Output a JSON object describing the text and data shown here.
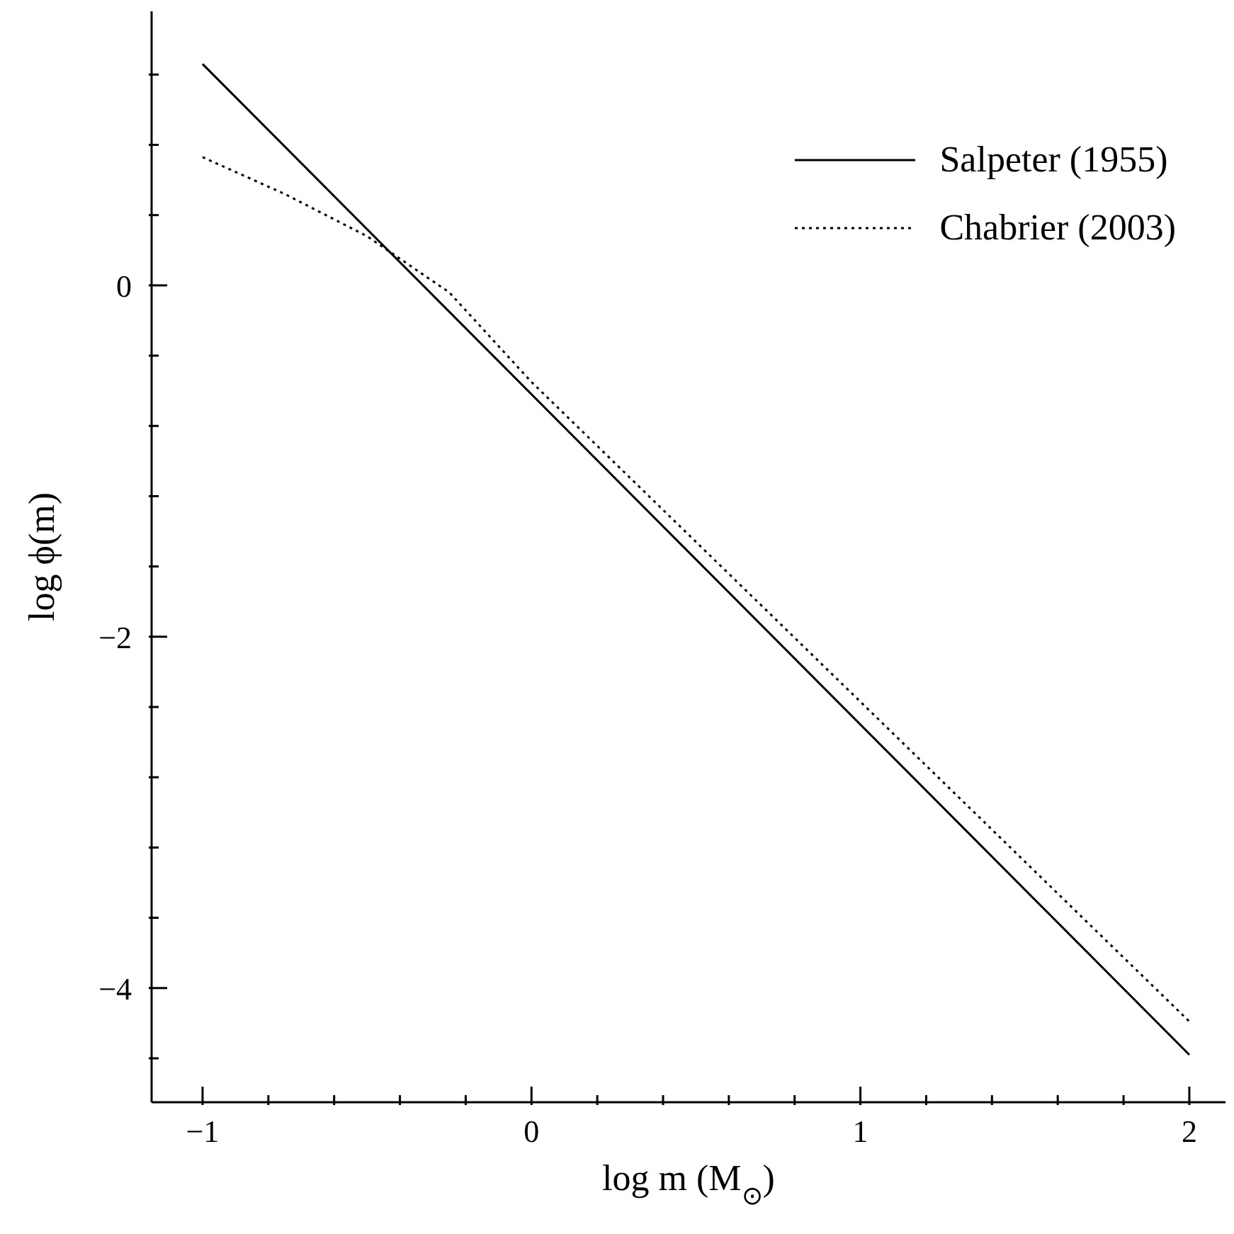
{
  "chart_data": {
    "type": "line",
    "xlabel": "log m (M$_{⊙}$)",
    "ylabel": "log ϕ(m)",
    "xlim": [
      -1.155,
      2.11
    ],
    "ylim": [
      -4.65,
      1.56
    ],
    "xticks": [
      {
        "value": -1,
        "label": "−1"
      },
      {
        "value": -0.8,
        "label": null
      },
      {
        "value": -0.6,
        "label": null
      },
      {
        "value": -0.4,
        "label": null
      },
      {
        "value": -0.2,
        "label": null
      },
      0,
      {
        "value": 0.2,
        "label": null
      },
      {
        "value": 0.4,
        "label": null
      },
      {
        "value": 0.6,
        "label": null
      },
      {
        "value": 0.8,
        "label": null
      },
      1,
      {
        "value": 1.2,
        "label": null
      },
      {
        "value": 1.4,
        "label": null
      },
      {
        "value": 1.6,
        "label": null
      },
      {
        "value": 1.8,
        "label": null
      },
      2
    ],
    "yticks": [
      {
        "value": -4.4,
        "label": null
      },
      {
        "value": -4,
        "label": "−4"
      },
      {
        "value": -3.6,
        "label": null
      },
      {
        "value": -3.2,
        "label": null
      },
      {
        "value": -2.8,
        "label": null
      },
      {
        "value": -2.4,
        "label": null
      },
      {
        "value": -2,
        "label": "−2"
      },
      {
        "value": -1.6,
        "label": null
      },
      {
        "value": -1.2,
        "label": null
      },
      {
        "value": -0.8,
        "label": null
      },
      {
        "value": -0.4,
        "label": null
      },
      0,
      {
        "value": 0.4,
        "label": null
      },
      {
        "value": 0.8,
        "label": null
      },
      {
        "value": 1.2,
        "label": null
      }
    ],
    "legend": "top right",
    "grid": false,
    "marker": "none",
    "series": [
      {
        "name": "Salpeter (1955)",
        "color": "#000000",
        "line_style": "solid",
        "x": [
          -1,
          2
        ],
        "values": [
          1.26,
          -4.38
        ]
      },
      {
        "name": "Chabrier (2003)",
        "color": "#000000",
        "line_style": "dotted",
        "x": [
          -1,
          -0.75,
          -0.5,
          -0.25,
          0,
          0.5,
          1,
          1.5,
          2
        ],
        "values": [
          0.73,
          0.52,
          0.28,
          -0.04,
          -0.55,
          -1.46,
          -2.37,
          -3.28,
          -4.19
        ]
      }
    ]
  }
}
